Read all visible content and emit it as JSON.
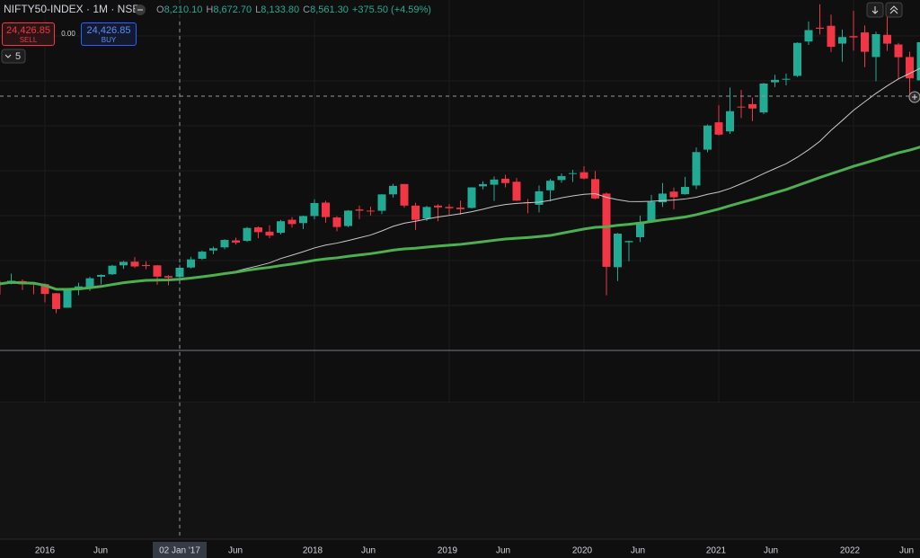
{
  "header": {
    "symbol": "NIFTY50-INDEX · 1M · NSE",
    "ohlc": [
      {
        "key": "O",
        "value": "8,210.10"
      },
      {
        "key": "H",
        "value": "8,672.70"
      },
      {
        "key": "L",
        "value": "8,133.80"
      },
      {
        "key": "C",
        "value": "8,561.30"
      }
    ],
    "change": "+375.50 (+4.59%)"
  },
  "trade": {
    "sell_price": "24,426.85",
    "sell": "SELL",
    "spread": "0.00",
    "buy_price": "24,426.85",
    "buy": "BUY"
  },
  "indicators_count": "5",
  "x_labels": [
    "2016",
    "Jun",
    "02 Jan '17",
    "Jun",
    "2018",
    "Jun",
    "2019",
    "Jun",
    "2020",
    "Jun",
    "2021",
    "Jun",
    "2022",
    "Jun"
  ],
  "chart_data": {
    "type": "candlestick",
    "up_color": "#22ab94",
    "down_color": "#f23645",
    "ylim": [
      5410,
      18766
    ],
    "ohlc": [
      [
        7971,
        8055,
        7540,
        7949
      ],
      [
        7950,
        8337,
        7930,
        8066
      ],
      [
        8054,
        8116,
        7714,
        7935
      ],
      [
        7954,
        7979,
        7551,
        7946
      ],
      [
        7938,
        7972,
        7241,
        7564
      ],
      [
        7589,
        7600,
        6825,
        6987
      ],
      [
        7038,
        7777,
        7035,
        7738
      ],
      [
        7718,
        7992,
        7516,
        7850
      ],
      [
        7822,
        8213,
        7679,
        8160
      ],
      [
        8220,
        8308,
        7927,
        8288
      ],
      [
        8313,
        8674,
        8287,
        8639
      ],
      [
        8654,
        8819,
        8518,
        8786
      ],
      [
        8793,
        8968,
        8555,
        8611
      ],
      [
        8667,
        8806,
        8506,
        8626
      ],
      [
        8653,
        8669,
        7916,
        8224
      ],
      [
        8244,
        8274,
        7893,
        8186
      ],
      [
        8210,
        8672,
        8133,
        8561
      ],
      [
        8570,
        8982,
        8537,
        8880
      ],
      [
        8904,
        9218,
        8860,
        9174
      ],
      [
        9220,
        9367,
        9075,
        9304
      ],
      [
        9339,
        9650,
        9269,
        9621
      ],
      [
        9604,
        9709,
        9448,
        9521
      ],
      [
        9587,
        10115,
        9544,
        10077
      ],
      [
        10101,
        10137,
        9685,
        9918
      ],
      [
        9937,
        10179,
        9688,
        9788
      ],
      [
        9893,
        10384,
        9831,
        10335
      ],
      [
        10391,
        10490,
        10094,
        10227
      ],
      [
        10264,
        10553,
        10033,
        10531
      ],
      [
        10532,
        11172,
        10404,
        11028
      ],
      [
        11044,
        11118,
        10276,
        10493
      ],
      [
        10480,
        10526,
        9952,
        10114
      ],
      [
        10152,
        10759,
        10112,
        10739
      ],
      [
        10783,
        10929,
        10418,
        10736
      ],
      [
        10738,
        10893,
        10550,
        10714
      ],
      [
        10733,
        11367,
        10605,
        11357
      ],
      [
        11359,
        11760,
        11234,
        11681
      ],
      [
        11751,
        11752,
        10850,
        10930
      ],
      [
        10930,
        11035,
        10005,
        10387
      ],
      [
        10441,
        10922,
        10342,
        10877
      ],
      [
        10930,
        10985,
        10334,
        10863
      ],
      [
        10881,
        10987,
        10583,
        10831
      ],
      [
        10851,
        11119,
        10585,
        10793
      ],
      [
        10843,
        11630,
        10817,
        11624
      ],
      [
        11665,
        11856,
        11549,
        11748
      ],
      [
        11726,
        12041,
        11108,
        11923
      ],
      [
        11954,
        12103,
        11626,
        11789
      ],
      [
        11839,
        11981,
        11107,
        11118
      ],
      [
        11061,
        11181,
        10637,
        11023
      ],
      [
        10960,
        11695,
        10670,
        11474
      ],
      [
        11515,
        11945,
        11090,
        11877
      ],
      [
        11904,
        12158,
        11802,
        12056
      ],
      [
        12137,
        12294,
        11833,
        12168
      ],
      [
        12202,
        12430,
        11929,
        11962
      ],
      [
        11939,
        12246,
        11176,
        11202
      ],
      [
        11388,
        11433,
        7511,
        8598
      ],
      [
        8584,
        9889,
        8055,
        9860
      ],
      [
        9534,
        9598,
        8807,
        9580
      ],
      [
        9726,
        10553,
        9544,
        10302
      ],
      [
        10323,
        11341,
        10299,
        11073
      ],
      [
        11058,
        11794,
        10882,
        11388
      ],
      [
        11464,
        11618,
        10790,
        11248
      ],
      [
        11364,
        12025,
        11347,
        11642
      ],
      [
        11697,
        13146,
        11557,
        12969
      ],
      [
        13062,
        14025,
        12963,
        13982
      ],
      [
        14104,
        14754,
        13597,
        13635
      ],
      [
        13758,
        15432,
        13662,
        14529
      ],
      [
        14702,
        15337,
        14265,
        14691
      ],
      [
        14798,
        15044,
        14151,
        14631
      ],
      [
        14481,
        15606,
        14417,
        15583
      ],
      [
        15629,
        15916,
        15450,
        15722
      ],
      [
        15755,
        15962,
        15514,
        15763
      ],
      [
        15874,
        17154,
        15835,
        17132
      ],
      [
        17185,
        17948,
        17055,
        17618
      ],
      [
        17712,
        18604,
        17452,
        17672
      ],
      [
        17783,
        18210,
        16782,
        16983
      ],
      [
        17104,
        17640,
        16410,
        17354
      ],
      [
        17388,
        18351,
        16837,
        17340
      ],
      [
        17529,
        17794,
        16204,
        16794
      ],
      [
        16593,
        17560,
        15671,
        17465
      ],
      [
        17437,
        18115,
        16825,
        17103
      ],
      [
        17070,
        17132,
        15735,
        16585
      ],
      [
        16594,
        16794,
        15183,
        15780
      ],
      [
        15703,
        17172,
        15512,
        17158
      ]
    ]
  }
}
